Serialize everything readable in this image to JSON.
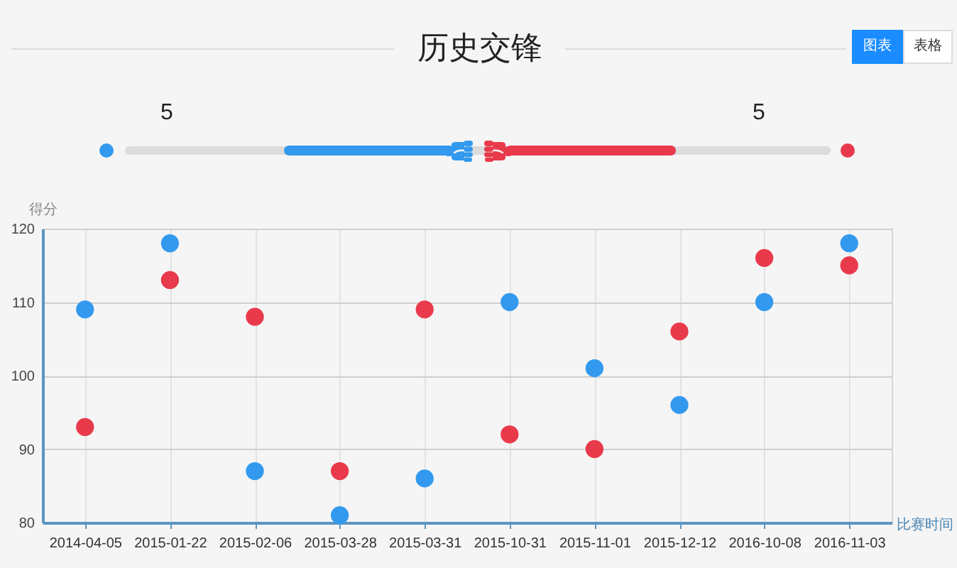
{
  "chart_data": {
    "type": "scatter",
    "title": "历史交锋",
    "xlabel": "比赛时间",
    "ylabel": "得分",
    "categories": [
      "2014-04-05",
      "2015-01-22",
      "2015-02-06",
      "2015-03-28",
      "2015-03-31",
      "2015-10-31",
      "2015-11-01",
      "2015-12-12",
      "2016-10-08",
      "2016-11-03"
    ],
    "series": [
      {
        "color": "#3399ee",
        "values": [
          109,
          118,
          87,
          81,
          86,
          110,
          101,
          96,
          110,
          118
        ]
      },
      {
        "color": "#e93a4b",
        "values": [
          93,
          113,
          108,
          87,
          109,
          92,
          90,
          106,
          116,
          115
        ]
      }
    ],
    "ylim": [
      80,
      120
    ],
    "yticks": [
      80,
      90,
      100,
      110,
      120
    ],
    "grid": true,
    "marker": "circle",
    "annotations": [
      "5",
      "5",
      "图表",
      "表格"
    ]
  }
}
